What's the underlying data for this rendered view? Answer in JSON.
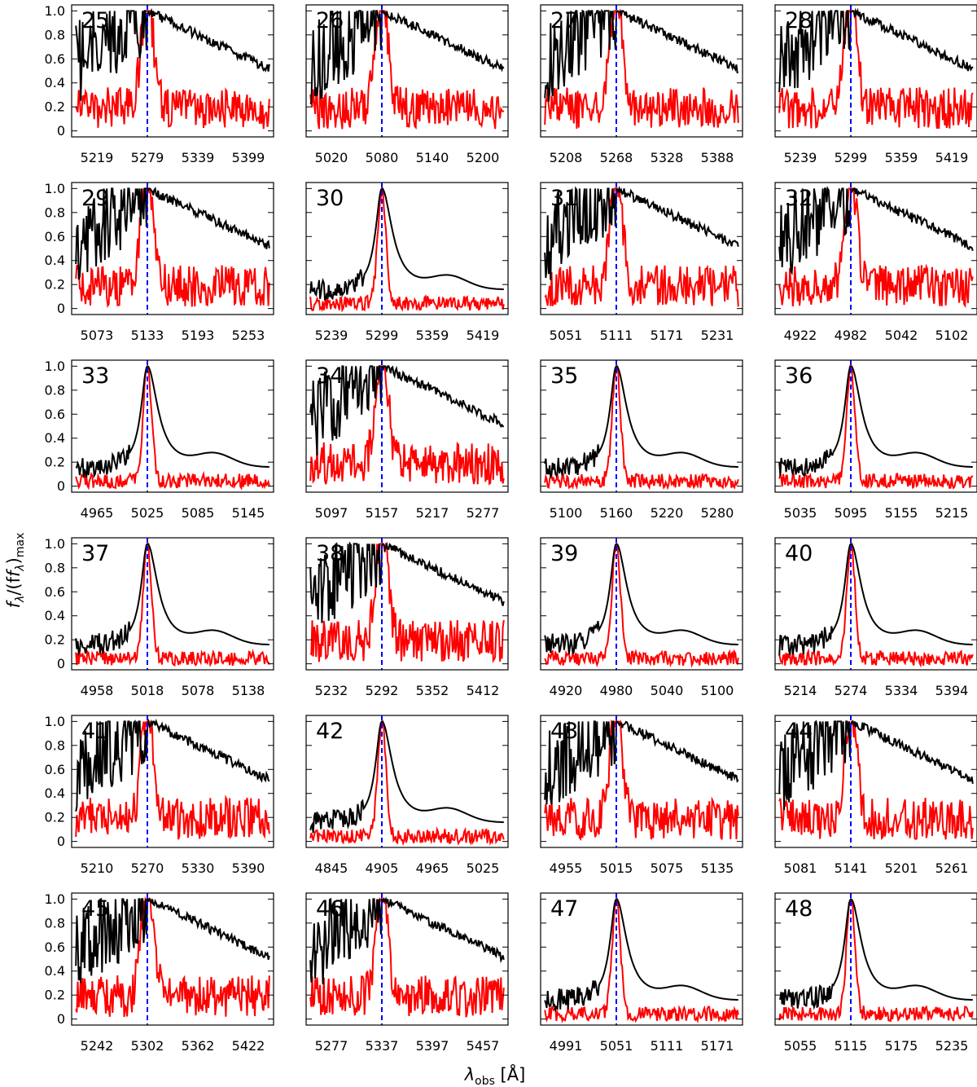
{
  "figure": {
    "ylabel_main": "f",
    "ylabel_sub1": "λ",
    "ylabel_mid": "/(f",
    "ylabel_sub2": "λ",
    "ylabel_end": ")",
    "ylabel_sub3": "max",
    "xlabel_main": "λ",
    "xlabel_sub": "obs",
    "xlabel_unit": " [Å]"
  },
  "colors": {
    "continuum": "#000000",
    "line": "#ff0000",
    "marker": "#0000ff"
  },
  "chart_data": {
    "type": "line",
    "layout": "6 rows x 4 columns small multiples",
    "ylim": [
      -0.05,
      1.05
    ],
    "yticks": [
      0,
      0.2,
      0.4,
      0.6,
      0.8,
      1.0
    ],
    "ytick_labels": [
      "0",
      "0.2",
      "0.4",
      "0.6",
      "0.8",
      "1.0"
    ],
    "grid": false,
    "series_colors": {
      "black": "#000000",
      "red": "#ff0000",
      "marker": "#0000ff"
    },
    "panels": [
      {
        "id": "25",
        "center": 5279,
        "xticks": [
          5219,
          5279,
          5339,
          5399
        ],
        "profile": "ragged"
      },
      {
        "id": "26",
        "center": 5080,
        "xticks": [
          5020,
          5080,
          5140,
          5200
        ],
        "profile": "ragged"
      },
      {
        "id": "27",
        "center": 5268,
        "xticks": [
          5208,
          5268,
          5328,
          5388
        ],
        "profile": "ragged"
      },
      {
        "id": "28",
        "center": 5299,
        "xticks": [
          5239,
          5299,
          5359,
          5419
        ],
        "profile": "ragged"
      },
      {
        "id": "29",
        "center": 5133,
        "xticks": [
          5073,
          5133,
          5193,
          5253
        ],
        "profile": "ragged"
      },
      {
        "id": "30",
        "center": 5299,
        "xticks": [
          5239,
          5299,
          5359,
          5419
        ],
        "profile": "peaked"
      },
      {
        "id": "31",
        "center": 5111,
        "xticks": [
          5051,
          5111,
          5171,
          5231
        ],
        "profile": "ragged"
      },
      {
        "id": "32",
        "center": 4982,
        "xticks": [
          4922,
          4982,
          5042,
          5102
        ],
        "profile": "ragged"
      },
      {
        "id": "33",
        "center": 5025,
        "xticks": [
          4965,
          5025,
          5085,
          5145
        ],
        "profile": "peaked"
      },
      {
        "id": "34",
        "center": 5157,
        "xticks": [
          5097,
          5157,
          5217,
          5277
        ],
        "profile": "ragged"
      },
      {
        "id": "35",
        "center": 5160,
        "xticks": [
          5100,
          5160,
          5220,
          5280
        ],
        "profile": "peaked"
      },
      {
        "id": "36",
        "center": 5095,
        "xticks": [
          5035,
          5095,
          5155,
          5215
        ],
        "profile": "peaked"
      },
      {
        "id": "37",
        "center": 5018,
        "xticks": [
          4958,
          5018,
          5078,
          5138
        ],
        "profile": "peaked"
      },
      {
        "id": "38",
        "center": 5292,
        "xticks": [
          5232,
          5292,
          5352,
          5412
        ],
        "profile": "ragged"
      },
      {
        "id": "39",
        "center": 4980,
        "xticks": [
          4920,
          4980,
          5040,
          5100
        ],
        "profile": "peaked"
      },
      {
        "id": "40",
        "center": 5274,
        "xticks": [
          5214,
          5274,
          5334,
          5394
        ],
        "profile": "peaked"
      },
      {
        "id": "41",
        "center": 5270,
        "xticks": [
          5210,
          5270,
          5330,
          5390
        ],
        "profile": "ragged"
      },
      {
        "id": "42",
        "center": 4905,
        "xticks": [
          4845,
          4905,
          4965,
          5025
        ],
        "profile": "peaked"
      },
      {
        "id": "43",
        "center": 5015,
        "xticks": [
          4955,
          5015,
          5075,
          5135
        ],
        "profile": "ragged"
      },
      {
        "id": "44",
        "center": 5141,
        "xticks": [
          5081,
          5141,
          5201,
          5261
        ],
        "profile": "ragged"
      },
      {
        "id": "45",
        "center": 5302,
        "xticks": [
          5242,
          5302,
          5362,
          5422
        ],
        "profile": "ragged"
      },
      {
        "id": "46",
        "center": 5337,
        "xticks": [
          5277,
          5337,
          5397,
          5457
        ],
        "profile": "ragged"
      },
      {
        "id": "47",
        "center": 5051,
        "xticks": [
          4991,
          5051,
          5111,
          5171
        ],
        "profile": "peaked"
      },
      {
        "id": "48",
        "center": 5115,
        "xticks": [
          5055,
          5115,
          5175,
          5235
        ],
        "profile": "peaked"
      }
    ]
  }
}
